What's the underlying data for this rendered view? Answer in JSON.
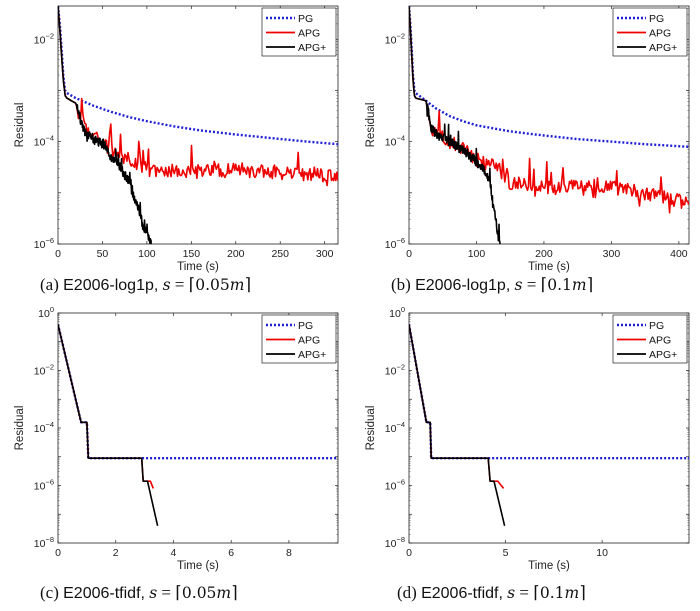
{
  "chart_data": [
    {
      "type": "line",
      "panel": "a",
      "caption": {
        "label": "(a)",
        "dataset": "E2006-log1p,",
        "s_expr": "0.05",
        "var": "m"
      },
      "xlabel": "Time (s)",
      "ylabel": "Residual",
      "xlim": [
        0,
        315
      ],
      "ylim_exp": [
        -6,
        -1.35
      ],
      "yscale": "log",
      "xticks": [
        0,
        50,
        100,
        150,
        200,
        250,
        300
      ],
      "yticks_exp": [
        -6,
        -4,
        -2
      ],
      "legend_pos": "top-right",
      "series": [
        {
          "name": "PG",
          "color": "#1f1fd6",
          "style": "dotted",
          "x": [
            0,
            2,
            4,
            6,
            8,
            10,
            20,
            40,
            60,
            80,
            100,
            130,
            160,
            200,
            240,
            280,
            315
          ],
          "y_exp": [
            -1.35,
            -1.7,
            -2.2,
            -2.7,
            -3.0,
            -3.05,
            -3.15,
            -3.3,
            -3.42,
            -3.52,
            -3.6,
            -3.7,
            -3.78,
            -3.86,
            -3.93,
            -4.0,
            -4.05
          ]
        },
        {
          "name": "APG",
          "color": "#ee0000",
          "style": "solid-noisy",
          "x": [
            0,
            2,
            4,
            6,
            8,
            10,
            20,
            22,
            25,
            30,
            40,
            50,
            60,
            80,
            100,
            150,
            200,
            250,
            300,
            315
          ],
          "y_exp": [
            -1.35,
            -1.8,
            -2.3,
            -2.8,
            -3.1,
            -3.15,
            -3.25,
            -3.35,
            -3.55,
            -3.75,
            -3.85,
            -4.0,
            -4.15,
            -4.35,
            -4.55,
            -4.6,
            -4.55,
            -4.6,
            -4.65,
            -4.7
          ]
        },
        {
          "name": "APG+",
          "color": "#000000",
          "style": "solid-noisy",
          "x": [
            0,
            2,
            4,
            6,
            8,
            10,
            20,
            22,
            25,
            30,
            40,
            50,
            60,
            70,
            80,
            90,
            95,
            100,
            105
          ],
          "y_exp": [
            -1.35,
            -1.8,
            -2.3,
            -2.8,
            -3.1,
            -3.15,
            -3.25,
            -3.35,
            -3.55,
            -3.8,
            -3.95,
            -4.05,
            -4.3,
            -4.5,
            -4.8,
            -5.3,
            -5.6,
            -5.8,
            -6.0
          ]
        }
      ]
    },
    {
      "type": "line",
      "panel": "b",
      "caption": {
        "label": "(b)",
        "dataset": "E2006-log1p,",
        "s_expr": "0.1",
        "var": "m"
      },
      "xlabel": "Time (s)",
      "ylabel": "Residual",
      "xlim": [
        0,
        415
      ],
      "ylim_exp": [
        -6,
        -1.35
      ],
      "yscale": "log",
      "xticks": [
        0,
        100,
        200,
        300,
        400
      ],
      "yticks_exp": [
        -6,
        -4,
        -2
      ],
      "legend_pos": "top-right",
      "series": [
        {
          "name": "PG",
          "color": "#1f1fd6",
          "style": "dotted",
          "x": [
            0,
            2,
            4,
            6,
            8,
            10,
            20,
            40,
            60,
            80,
            100,
            150,
            200,
            250,
            300,
            350,
            415
          ],
          "y_exp": [
            -1.35,
            -1.7,
            -2.2,
            -2.7,
            -3.0,
            -3.05,
            -3.15,
            -3.35,
            -3.5,
            -3.6,
            -3.68,
            -3.8,
            -3.88,
            -3.95,
            -4.0,
            -4.05,
            -4.1
          ]
        },
        {
          "name": "APG",
          "color": "#ee0000",
          "style": "solid-noisy",
          "x": [
            0,
            2,
            4,
            6,
            8,
            10,
            25,
            28,
            32,
            40,
            60,
            80,
            100,
            130,
            150,
            200,
            250,
            300,
            350,
            415
          ],
          "y_exp": [
            -1.35,
            -1.8,
            -2.3,
            -2.8,
            -3.1,
            -3.15,
            -3.2,
            -3.35,
            -3.7,
            -3.85,
            -4.0,
            -4.15,
            -4.35,
            -4.5,
            -4.8,
            -4.9,
            -4.85,
            -4.9,
            -5.0,
            -5.2
          ]
        },
        {
          "name": "APG+",
          "color": "#000000",
          "style": "solid-noisy",
          "x": [
            0,
            2,
            4,
            6,
            8,
            10,
            25,
            28,
            32,
            40,
            60,
            80,
            100,
            110,
            120,
            125,
            130,
            135
          ],
          "y_exp": [
            -1.35,
            -1.8,
            -2.3,
            -2.8,
            -3.1,
            -3.15,
            -3.2,
            -3.35,
            -3.7,
            -3.85,
            -4.0,
            -4.15,
            -4.4,
            -4.55,
            -4.75,
            -5.3,
            -5.7,
            -6.0
          ]
        }
      ]
    },
    {
      "type": "line",
      "panel": "c",
      "caption": {
        "label": "(c)",
        "dataset": "E2006-tfidf,",
        "s_expr": "0.05",
        "var": "m"
      },
      "xlabel": "Time (s)",
      "ylabel": "Residual",
      "xlim": [
        0,
        9.7
      ],
      "ylim_exp": [
        -8,
        0
      ],
      "yscale": "log",
      "xticks": [
        0,
        2,
        4,
        6,
        8
      ],
      "yticks_exp": [
        -8,
        -6,
        -4,
        -2,
        0
      ],
      "legend_pos": "top-right",
      "series": [
        {
          "name": "PG",
          "color": "#1f1fd6",
          "style": "dotted",
          "x": [
            0,
            0.8,
            1.0,
            1.05,
            2,
            3,
            4,
            6,
            8,
            9.7
          ],
          "y_exp": [
            -0.4,
            -3.8,
            -3.8,
            -5.05,
            -5.05,
            -5.05,
            -5.05,
            -5.05,
            -5.05,
            -5.05
          ]
        },
        {
          "name": "APG",
          "color": "#ee0000",
          "style": "solid",
          "x": [
            0,
            0.8,
            1.0,
            1.05,
            2,
            2.9,
            2.95,
            3.05,
            3.2,
            3.3
          ],
          "y_exp": [
            -0.4,
            -3.8,
            -3.8,
            -5.05,
            -5.05,
            -5.05,
            -5.85,
            -5.85,
            -5.85,
            -6.1
          ]
        },
        {
          "name": "APG+",
          "color": "#000000",
          "style": "solid",
          "x": [
            0,
            0.8,
            1.0,
            1.05,
            2,
            2.9,
            2.95,
            3.1,
            3.45
          ],
          "y_exp": [
            -0.4,
            -3.8,
            -3.8,
            -5.05,
            -5.05,
            -5.05,
            -5.85,
            -5.85,
            -7.4
          ]
        }
      ]
    },
    {
      "type": "line",
      "panel": "d",
      "caption": {
        "label": "(d)",
        "dataset": "E2006-tfidf,",
        "s_expr": "0.1",
        "var": "m"
      },
      "xlabel": "Time (s)",
      "ylabel": "Residual",
      "xlim": [
        0,
        14.5
      ],
      "ylim_exp": [
        -8,
        0
      ],
      "yscale": "log",
      "xticks": [
        0,
        5,
        10
      ],
      "yticks_exp": [
        -8,
        -6,
        -4,
        -2,
        0
      ],
      "legend_pos": "top-right",
      "series": [
        {
          "name": "PG",
          "color": "#1f1fd6",
          "style": "dotted",
          "x": [
            0,
            0.9,
            1.1,
            1.15,
            3,
            4,
            6,
            8,
            10,
            12,
            14.5
          ],
          "y_exp": [
            -0.4,
            -3.8,
            -3.8,
            -5.05,
            -5.05,
            -5.05,
            -5.05,
            -5.05,
            -5.05,
            -5.05,
            -5.05
          ]
        },
        {
          "name": "APG",
          "color": "#ee0000",
          "style": "solid",
          "x": [
            0,
            0.9,
            1.1,
            1.15,
            3,
            4.1,
            4.2,
            4.6,
            4.9
          ],
          "y_exp": [
            -0.4,
            -3.8,
            -3.8,
            -5.05,
            -5.05,
            -5.05,
            -5.85,
            -5.85,
            -6.1
          ]
        },
        {
          "name": "APG+",
          "color": "#000000",
          "style": "solid",
          "x": [
            0,
            0.9,
            1.1,
            1.15,
            3,
            4.1,
            4.2,
            4.4,
            4.95
          ],
          "y_exp": [
            -0.4,
            -3.8,
            -3.8,
            -5.05,
            -5.05,
            -5.05,
            -5.85,
            -5.85,
            -7.4
          ]
        }
      ]
    }
  ]
}
